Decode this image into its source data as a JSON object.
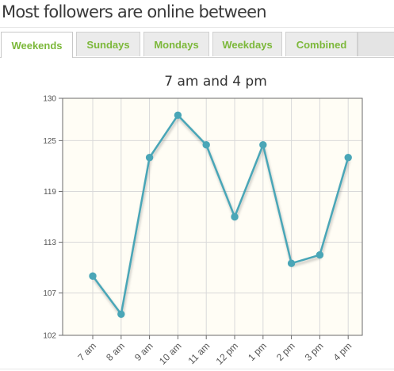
{
  "header": {
    "title": "Most followers are online between"
  },
  "tabs": [
    {
      "label": "Weekends",
      "active": true
    },
    {
      "label": "Sundays",
      "active": false
    },
    {
      "label": "Mondays",
      "active": false
    },
    {
      "label": "Weekdays",
      "active": false
    },
    {
      "label": "Combined",
      "active": false
    }
  ],
  "colors": {
    "tab_text": "#7cb83a",
    "series_line": "#4aa6b7",
    "plot_background": "#fffdf5"
  },
  "chart_data": {
    "type": "line",
    "title": "7 am and 4 pm",
    "xlabel": "",
    "ylabel": "",
    "categories": [
      "7 am",
      "8 am",
      "9 am",
      "10 am",
      "11 am",
      "12 pm",
      "1 pm",
      "2 pm",
      "3 pm",
      "4 pm"
    ],
    "series": [
      {
        "values": [
          109,
          104.5,
          123,
          128,
          124.5,
          116,
          124.5,
          110.5,
          111.5,
          123
        ]
      }
    ],
    "ylim": [
      102,
      130
    ],
    "yticks": [
      102,
      107,
      113,
      119,
      125,
      130
    ],
    "grid": true,
    "legend": "none"
  }
}
